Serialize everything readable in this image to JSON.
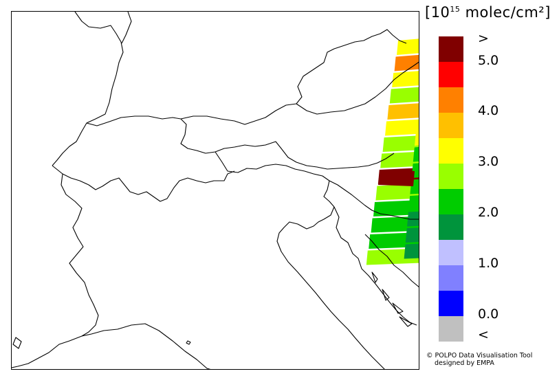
{
  "legend": {
    "unit_prefix": "[10",
    "unit_exponent": "15",
    "unit_suffix": " molec/cm²]",
    "colors": [
      "#800000",
      "#ff0000",
      "#ff8000",
      "#ffc000",
      "#ffff00",
      "#99ff00",
      "#00cc00",
      "#00943c",
      "#c0c0ff",
      "#8080ff",
      "#0000ff",
      "#c0c0c0"
    ],
    "labels": [
      ">",
      "5.0",
      "4.0",
      "3.0",
      "2.0",
      "1.0",
      "0.0",
      "<"
    ]
  },
  "credit": {
    "line1": "© POLPO Data Visualisation Tool",
    "line2": "designed by EMPA"
  },
  "swath": {
    "pixels": [
      {
        "color": "#ffff00"
      },
      {
        "color": "#ff8000"
      },
      {
        "color": "#ffff00"
      },
      {
        "color": "#99ff00"
      },
      {
        "color": "#ffc000"
      },
      {
        "color": "#ffff00"
      },
      {
        "color": "#99ff00"
      },
      {
        "color": "#99ff00"
      },
      {
        "color": "#800000"
      },
      {
        "color": "#99ff00"
      },
      {
        "color": "#00cc00"
      },
      {
        "color": "#00cc00"
      },
      {
        "color": "#00cc00"
      },
      {
        "color": "#99ff00"
      }
    ],
    "right_column": [
      {
        "color": "#ffff00"
      },
      {
        "color": "#00cc00"
      },
      {
        "color": "#00cc00"
      },
      {
        "color": "#00cc00"
      },
      {
        "color": "#00cc00"
      },
      {
        "color": "#00943c"
      },
      {
        "color": "#00943c"
      },
      {
        "color": "#00943c"
      }
    ]
  }
}
